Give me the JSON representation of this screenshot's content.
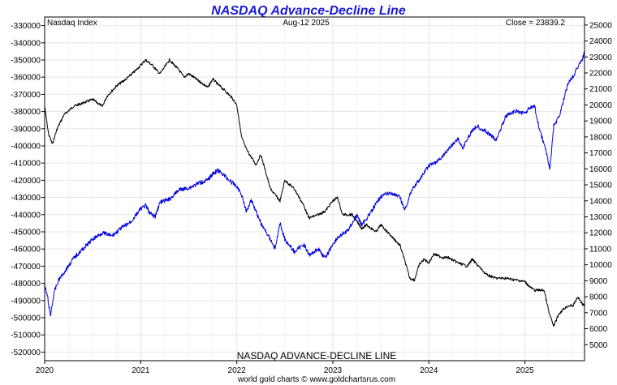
{
  "chart_data": {
    "type": "line",
    "title": "NASDAQ Advance-Decline Line",
    "inner_title": "NASDAQ ADVANCE-DECLINE LINE",
    "header_left": "Nasdaq Index",
    "header_center": "Aug-12  2025",
    "header_right": "Close = 23839.2",
    "footer": "world gold charts © www.goldchartsrus.com",
    "grid": true,
    "colors": {
      "ad_line": "#000000",
      "nasdaq": "#0000dd",
      "grid": "#e6e6e6",
      "title": "#1a1ad6"
    },
    "x_ticks": [
      "2020",
      "2021",
      "2022",
      "2023",
      "2024",
      "2025"
    ],
    "xlim": [
      2020.0,
      2025.62
    ],
    "left_axis": {
      "ylim": [
        -525000,
        -325000
      ],
      "ticks": [
        "-330000",
        "-340000",
        "-350000",
        "-360000",
        "-370000",
        "-380000",
        "-390000",
        "-400000",
        "-410000",
        "-420000",
        "-430000",
        "-440000",
        "-450000",
        "-460000",
        "-470000",
        "-480000",
        "-490000",
        "-500000",
        "-510000",
        "-520000"
      ]
    },
    "right_axis": {
      "ylim": [
        4000,
        25500
      ],
      "ticks": [
        "25000",
        "24000",
        "23000",
        "22000",
        "21000",
        "20000",
        "19000",
        "18000",
        "17000",
        "16000",
        "15000",
        "14000",
        "13000",
        "12000",
        "11000",
        "10000",
        "9000",
        "8000",
        "7000",
        "6000",
        "5000"
      ]
    },
    "series": [
      {
        "axis": "left",
        "x": [
          2020.0,
          2020.04,
          2020.08,
          2020.13,
          2020.2,
          2020.3,
          2020.4,
          2020.5,
          2020.6,
          2020.65,
          2020.75,
          2020.85,
          2020.95,
          2021.05,
          2021.12,
          2021.2,
          2021.3,
          2021.4,
          2021.45,
          2021.5,
          2021.6,
          2021.7,
          2021.75,
          2021.8,
          2021.88,
          2021.95,
          2022.0,
          2022.05,
          2022.1,
          2022.2,
          2022.25,
          2022.3,
          2022.35,
          2022.45,
          2022.5,
          2022.6,
          2022.7,
          2022.75,
          2022.85,
          2022.92,
          2023.0,
          2023.05,
          2023.1,
          2023.2,
          2023.3,
          2023.35,
          2023.45,
          2023.5,
          2023.6,
          2023.7,
          2023.75,
          2023.8,
          2023.85,
          2023.9,
          2023.95,
          2024.0,
          2024.05,
          2024.15,
          2024.2,
          2024.3,
          2024.4,
          2024.45,
          2024.55,
          2024.6,
          2024.7,
          2024.8,
          2024.9,
          2025.0,
          2025.05,
          2025.1,
          2025.2,
          2025.25,
          2025.3,
          2025.35,
          2025.4,
          2025.45,
          2025.5,
          2025.55,
          2025.6,
          2025.62
        ],
        "y": [
          -377000,
          -393000,
          -399000,
          -390000,
          -382000,
          -377000,
          -375000,
          -373000,
          -377000,
          -371000,
          -365000,
          -361000,
          -356000,
          -350000,
          -353000,
          -358000,
          -350000,
          -356000,
          -360000,
          -358000,
          -362000,
          -366000,
          -361000,
          -364000,
          -368000,
          -372000,
          -376000,
          -395000,
          -402000,
          -411000,
          -405000,
          -415000,
          -425000,
          -432000,
          -420000,
          -425000,
          -435000,
          -442000,
          -440000,
          -438000,
          -432000,
          -430000,
          -440000,
          -440000,
          -448000,
          -446000,
          -450000,
          -446000,
          -452000,
          -458000,
          -467000,
          -477000,
          -478000,
          -469000,
          -466000,
          -468000,
          -463000,
          -465000,
          -465000,
          -468000,
          -470000,
          -466000,
          -472000,
          -475000,
          -477000,
          -477000,
          -478000,
          -479000,
          -482000,
          -484000,
          -484000,
          -497000,
          -505000,
          -498000,
          -495000,
          -493000,
          -493000,
          -488000,
          -492000,
          -493000
        ]
      },
      {
        "axis": "right",
        "x": [
          2020.0,
          2020.03,
          2020.06,
          2020.1,
          2020.15,
          2020.2,
          2020.3,
          2020.4,
          2020.5,
          2020.6,
          2020.7,
          2020.8,
          2020.9,
          2021.0,
          2021.05,
          2021.1,
          2021.15,
          2021.2,
          2021.3,
          2021.4,
          2021.5,
          2021.6,
          2021.7,
          2021.75,
          2021.8,
          2021.85,
          2021.92,
          2022.0,
          2022.05,
          2022.1,
          2022.15,
          2022.25,
          2022.35,
          2022.4,
          2022.45,
          2022.5,
          2022.6,
          2022.7,
          2022.75,
          2022.85,
          2022.92,
          2023.0,
          2023.05,
          2023.15,
          2023.25,
          2023.3,
          2023.4,
          2023.5,
          2023.6,
          2023.7,
          2023.75,
          2023.82,
          2023.9,
          2024.0,
          2024.1,
          2024.2,
          2024.3,
          2024.35,
          2024.45,
          2024.5,
          2024.6,
          2024.7,
          2024.8,
          2024.9,
          2025.0,
          2025.05,
          2025.1,
          2025.15,
          2025.22,
          2025.26,
          2025.3,
          2025.35,
          2025.4,
          2025.45,
          2025.5,
          2025.55,
          2025.6,
          2025.62
        ],
        "y": [
          8700,
          8000,
          6800,
          8300,
          9100,
          9500,
          10400,
          11000,
          11600,
          12000,
          11800,
          12300,
          12700,
          13500,
          13700,
          13200,
          13000,
          13900,
          14100,
          14700,
          14800,
          15100,
          15300,
          15700,
          15900,
          15700,
          15300,
          14900,
          14400,
          13300,
          14100,
          12600,
          11600,
          11000,
          12600,
          11600,
          10800,
          11300,
          10600,
          11000,
          10400,
          11300,
          11700,
          12100,
          13100,
          12500,
          13300,
          14300,
          14500,
          14200,
          13400,
          14700,
          15300,
          16200,
          16500,
          17200,
          17900,
          17300,
          18400,
          18700,
          18300,
          17800,
          19300,
          19600,
          19500,
          19800,
          19900,
          18500,
          17100,
          16000,
          18700,
          19200,
          20200,
          21400,
          21800,
          22400,
          22900,
          23300
        ]
      }
    ]
  }
}
